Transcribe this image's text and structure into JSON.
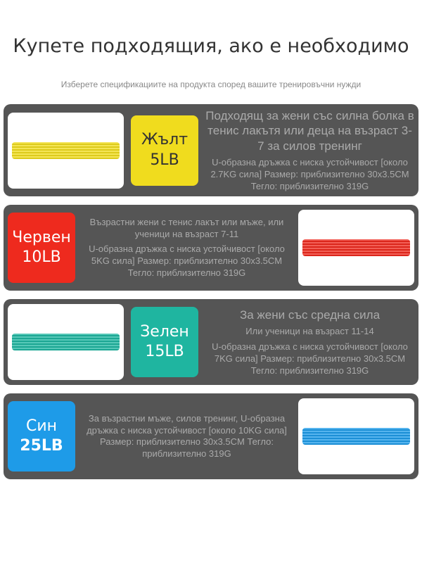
{
  "title": "Купете подходящия, ако е необходимо",
  "subtitle": "Изберете спецификациите на продукта според вашите тренировъчни нужди",
  "items": [
    {
      "color_name": "Жълт",
      "weight": "5LB",
      "color": "#f0dc1e",
      "tag_text_color": "#333",
      "desc_main": "Подходящ за жени със силна болка в тенис лакътя или деца на възраст 3-7 за силов тренинг",
      "desc_spec": "U-образна дръжка с ниска устойчивост [около 2.7KG сила] Размер: приблизително 30x3.5CM Тегло: приблизително 319G"
    },
    {
      "color_name": "Червен",
      "weight": "10LB",
      "color": "#ee2a1e",
      "tag_text_color": "#fff",
      "desc_main": "Възрастни жени с тенис лакът или мъже, или ученици на възраст 7-11",
      "desc_spec": "U-образна дръжка с ниска устойчивост [около 5KG сила] Размер: приблизително 30x3.5CM Тегло: приблизително 319G"
    },
    {
      "color_name": "Зелен",
      "weight": "15LB",
      "color": "#1fb5a0",
      "tag_text_color": "#fff",
      "desc_main": "За жени със средна сила",
      "desc_extra": "Или ученици на възраст 11-14",
      "desc_spec": "U-образна дръжка с ниска устойчивост [около 7KG сила] Размер: приблизително 30x3.5CM Тегло: приблизително 319G"
    },
    {
      "color_name": "Син",
      "weight": "25LB",
      "color": "#1e9be8",
      "tag_text_color": "#fff",
      "desc_main": "За възрастни мъже, силов тренинг, U-образна дръжка с ниска устойчивост [около 10KG сила] Размер: приблизително 30x3.5CM Тегло: приблизително 319G"
    }
  ]
}
